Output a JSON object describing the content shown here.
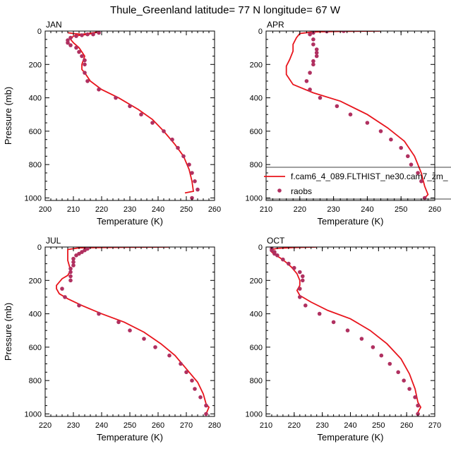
{
  "figure": {
    "title": "Thule_Greenland  latitude= 77 N longitude= 67 W"
  },
  "legend": {
    "model_label": "f.cam6_4_089.FLTHIST_ne30.cam7_zm_",
    "obs_label": "raobs",
    "placement": "APR panel, lower right",
    "model_color": "#e8141c",
    "obs_color": "#b03060"
  },
  "chart_data": [
    {
      "type": "line",
      "panel": "JAN",
      "xlabel": "Temperature (K)",
      "ylabel": "Pressure (mb)",
      "xlim": [
        200,
        260
      ],
      "ylim": [
        1015,
        0
      ],
      "x_ticks": [
        200,
        210,
        220,
        230,
        240,
        250,
        260
      ],
      "y_ticks": [
        0,
        200,
        400,
        600,
        800,
        1000
      ],
      "series": [
        {
          "kind": "line",
          "color": "#e8141c",
          "points": [
            [
              208,
              10
            ],
            [
              210,
              15
            ],
            [
              213,
              20
            ],
            [
              217,
              10
            ],
            [
              219,
              5
            ],
            [
              215,
              20
            ],
            [
              210,
              30
            ],
            [
              209,
              50
            ],
            [
              210,
              70
            ],
            [
              212,
              100
            ],
            [
              214,
              150
            ],
            [
              213,
              200
            ],
            [
              213,
              230
            ],
            [
              214,
              250
            ],
            [
              216,
              300
            ],
            [
              220,
              350
            ],
            [
              226,
              400
            ],
            [
              233,
              470
            ],
            [
              238,
              530
            ],
            [
              242,
              600
            ],
            [
              246,
              680
            ],
            [
              249,
              750
            ],
            [
              251,
              830
            ],
            [
              252,
              900
            ],
            [
              252.5,
              960
            ],
            [
              249.5,
              970
            ]
          ]
        },
        {
          "kind": "scatter",
          "color": "#b03060",
          "points": [
            [
              219,
              10
            ],
            [
              217,
              20
            ],
            [
              215,
              20
            ],
            [
              213,
              25
            ],
            [
              211,
              30
            ],
            [
              209,
              40
            ],
            [
              208,
              55
            ],
            [
              208,
              70
            ],
            [
              209,
              85
            ],
            [
              211,
              100
            ],
            [
              212,
              125
            ],
            [
              213,
              150
            ],
            [
              214,
              175
            ],
            [
              214,
              200
            ],
            [
              214,
              250
            ],
            [
              215,
              300
            ],
            [
              219,
              350
            ],
            [
              225,
              400
            ],
            [
              230,
              450
            ],
            [
              234,
              500
            ],
            [
              238,
              550
            ],
            [
              242,
              600
            ],
            [
              245,
              650
            ],
            [
              247,
              700
            ],
            [
              249,
              750
            ],
            [
              251,
              800
            ],
            [
              252,
              850
            ],
            [
              253,
              900
            ],
            [
              254,
              950
            ],
            [
              252,
              1000
            ]
          ]
        }
      ]
    },
    {
      "type": "line",
      "panel": "APR",
      "xlabel": "Temperature (K)",
      "ylabel": "",
      "xlim": [
        210,
        260
      ],
      "ylim": [
        1015,
        0
      ],
      "x_ticks": [
        210,
        220,
        230,
        240,
        250,
        260
      ],
      "y_ticks": [
        0,
        200,
        400,
        600,
        800,
        1000
      ],
      "series": [
        {
          "kind": "line",
          "color": "#e8141c",
          "points": [
            [
              244,
              0
            ],
            [
              232,
              2
            ],
            [
              224,
              5
            ],
            [
              220,
              15
            ],
            [
              219,
              40
            ],
            [
              218,
              80
            ],
            [
              218,
              120
            ],
            [
              217,
              170
            ],
            [
              216,
              210
            ],
            [
              216,
              260
            ],
            [
              218,
              320
            ],
            [
              224,
              370
            ],
            [
              232,
              420
            ],
            [
              240,
              500
            ],
            [
              246,
              580
            ],
            [
              251,
              660
            ],
            [
              254,
              750
            ],
            [
              256,
              850
            ],
            [
              257,
              930
            ],
            [
              258,
              980
            ],
            [
              257,
              1000
            ]
          ]
        },
        {
          "kind": "scatter",
          "color": "#b03060",
          "points": [
            [
              233,
              0
            ],
            [
              228,
              2
            ],
            [
              224,
              10
            ],
            [
              223,
              20
            ],
            [
              224,
              50
            ],
            [
              224,
              80
            ],
            [
              225,
              110
            ],
            [
              225,
              130
            ],
            [
              225,
              150
            ],
            [
              224,
              180
            ],
            [
              224,
              200
            ],
            [
              223,
              250
            ],
            [
              222,
              300
            ],
            [
              223,
              350
            ],
            [
              226,
              400
            ],
            [
              231,
              450
            ],
            [
              235,
              500
            ],
            [
              240,
              550
            ],
            [
              244,
              600
            ],
            [
              247,
              650
            ],
            [
              250,
              700
            ],
            [
              252,
              750
            ],
            [
              253,
              800
            ],
            [
              255,
              850
            ],
            [
              256,
              900
            ],
            [
              257,
              1000
            ]
          ]
        }
      ]
    },
    {
      "type": "line",
      "panel": "JUL",
      "xlabel": "Temperature (K)",
      "ylabel": "Pressure (mb)",
      "xlim": [
        220,
        280
      ],
      "ylim": [
        1015,
        0
      ],
      "x_ticks": [
        220,
        230,
        240,
        250,
        260,
        270,
        280
      ],
      "y_ticks": [
        0,
        200,
        400,
        600,
        800,
        1000
      ],
      "series": [
        {
          "kind": "line",
          "color": "#e8141c",
          "points": [
            [
              264,
              0
            ],
            [
              245,
              2
            ],
            [
              232,
              5
            ],
            [
              228,
              15
            ],
            [
              228,
              40
            ],
            [
              228,
              80
            ],
            [
              229,
              140
            ],
            [
              228,
              170
            ],
            [
              226,
              190
            ],
            [
              225,
              210
            ],
            [
              224,
              230
            ],
            [
              224,
              250
            ],
            [
              225,
              280
            ],
            [
              228,
              310
            ],
            [
              233,
              350
            ],
            [
              240,
              400
            ],
            [
              248,
              450
            ],
            [
              255,
              510
            ],
            [
              261,
              580
            ],
            [
              266,
              650
            ],
            [
              270,
              730
            ],
            [
              274,
              810
            ],
            [
              276,
              880
            ],
            [
              277,
              940
            ],
            [
              278,
              960
            ],
            [
              277,
              1000
            ]
          ]
        },
        {
          "kind": "scatter",
          "color": "#b03060",
          "points": [
            [
              235,
              10
            ],
            [
              234,
              20
            ],
            [
              233,
              30
            ],
            [
              232,
              40
            ],
            [
              231,
              50
            ],
            [
              230,
              70
            ],
            [
              230,
              90
            ],
            [
              230,
              110
            ],
            [
              229,
              130
            ],
            [
              229,
              150
            ],
            [
              229,
              175
            ],
            [
              229,
              200
            ],
            [
              226,
              250
            ],
            [
              227,
              300
            ],
            [
              232,
              350
            ],
            [
              239,
              400
            ],
            [
              246,
              450
            ],
            [
              250,
              500
            ],
            [
              255,
              550
            ],
            [
              259,
              600
            ],
            [
              264,
              650
            ],
            [
              268,
              700
            ],
            [
              270,
              750
            ],
            [
              272,
              800
            ],
            [
              273,
              850
            ],
            [
              275,
              900
            ],
            [
              277,
              950
            ],
            [
              277,
              1000
            ]
          ]
        }
      ]
    },
    {
      "type": "line",
      "panel": "OCT",
      "xlabel": "Temperature (K)",
      "ylabel": "",
      "xlim": [
        210,
        270
      ],
      "ylim": [
        1015,
        0
      ],
      "x_ticks": [
        210,
        220,
        230,
        240,
        250,
        260,
        270
      ],
      "y_ticks": [
        0,
        200,
        400,
        600,
        800,
        1000
      ],
      "series": [
        {
          "kind": "line",
          "color": "#e8141c",
          "points": [
            [
              228,
              0
            ],
            [
              220,
              3
            ],
            [
              214,
              8
            ],
            [
              212,
              15
            ],
            [
              212,
              30
            ],
            [
              213,
              45
            ],
            [
              215,
              65
            ],
            [
              217,
              90
            ],
            [
              219,
              120
            ],
            [
              221,
              160
            ],
            [
              222,
              200
            ],
            [
              222,
              230
            ],
            [
              221,
              260
            ],
            [
              222,
              290
            ],
            [
              226,
              330
            ],
            [
              232,
              380
            ],
            [
              240,
              430
            ],
            [
              247,
              500
            ],
            [
              253,
              580
            ],
            [
              258,
              670
            ],
            [
              261,
              760
            ],
            [
              263,
              850
            ],
            [
              264,
              930
            ],
            [
              265,
              960
            ],
            [
              264,
              990
            ]
          ]
        },
        {
          "kind": "scatter",
          "color": "#b03060",
          "points": [
            [
              212,
              10
            ],
            [
              212,
              20
            ],
            [
              213,
              30
            ],
            [
              213,
              40
            ],
            [
              214,
              50
            ],
            [
              216,
              75
            ],
            [
              218,
              100
            ],
            [
              220,
              125
            ],
            [
              222,
              150
            ],
            [
              223,
              175
            ],
            [
              223,
              200
            ],
            [
              222,
              250
            ],
            [
              222,
              300
            ],
            [
              224,
              350
            ],
            [
              229,
              400
            ],
            [
              234,
              450
            ],
            [
              239,
              500
            ],
            [
              244,
              550
            ],
            [
              248,
              600
            ],
            [
              251,
              650
            ],
            [
              254,
              700
            ],
            [
              257,
              750
            ],
            [
              259,
              800
            ],
            [
              261,
              850
            ],
            [
              263,
              900
            ],
            [
              264,
              950
            ],
            [
              264,
              1000
            ]
          ]
        }
      ]
    }
  ]
}
